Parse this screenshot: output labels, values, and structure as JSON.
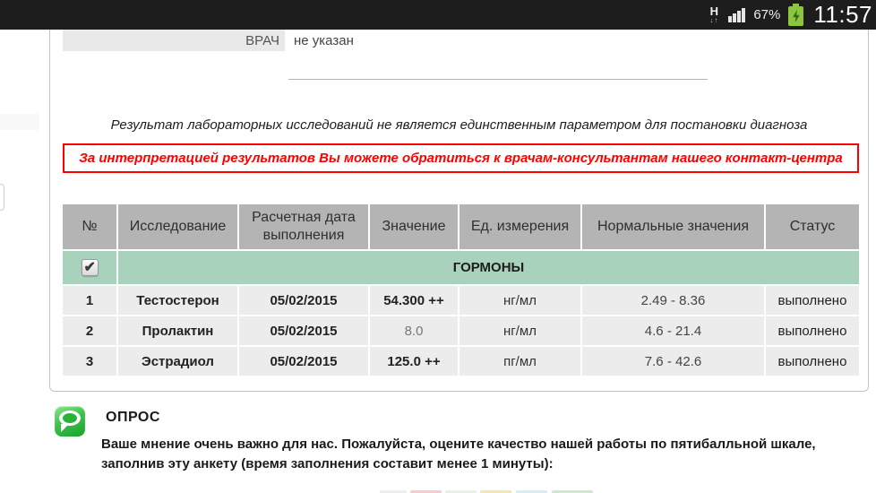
{
  "status_bar": {
    "network_type": "H",
    "battery_percent": "67%",
    "time": "11:57"
  },
  "doctor": {
    "label": "ВРАЧ",
    "value": "не указан"
  },
  "notice": {
    "text": "Результат лабораторных исследований не является единственным параметром для постановки диагноза"
  },
  "alert": {
    "text": "За интерпретацией результатов Вы можете обратиться к врачам-консультантам нашего контакт-центра"
  },
  "results_table": {
    "headers": [
      "№",
      "Исследование",
      "Расчетная дата выполнения",
      "Значение",
      "Ед. измерения",
      "Нормальные значения",
      "Статус"
    ],
    "group_label": "ГОРМОНЫ",
    "group_checked": true,
    "rows": [
      {
        "num": "1",
        "name": "Тестостерон",
        "date": "05/02/2015",
        "value": "54.300 ++",
        "unit": "нг/мл",
        "normal": "2.49 - 8.36",
        "status": "выполнено"
      },
      {
        "num": "2",
        "name": "Пролактин",
        "date": "05/02/2015",
        "value": "8.0",
        "unit": "нг/мл",
        "normal": "4.6 - 21.4",
        "status": "выполнено"
      },
      {
        "num": "3",
        "name": "Эстрадиол",
        "date": "05/02/2015",
        "value": "125.0 ++",
        "unit": "пг/мл",
        "normal": "7.6 - 42.6",
        "status": "выполнено"
      }
    ]
  },
  "survey": {
    "title": "ОПРОС",
    "text": "Ваше мнение очень важно для нас. Пожалуйста, оцените качество нашей работы по пятибалльной шкале, заполнив эту анкету (время заполнения составит менее 1 минуты):"
  },
  "colors": {
    "accent_green": "#a8d2bc",
    "header_gray": "#b4b4b4",
    "alert_red": "#ff0000",
    "battery_green": "#8cc63e",
    "strip_1": "#ededed",
    "strip_2": "#f6ccd1",
    "strip_3": "#e7efe7",
    "strip_4": "#f5e5b2",
    "strip_5": "#d8ecf3",
    "strip_6": "#cde8cd"
  }
}
